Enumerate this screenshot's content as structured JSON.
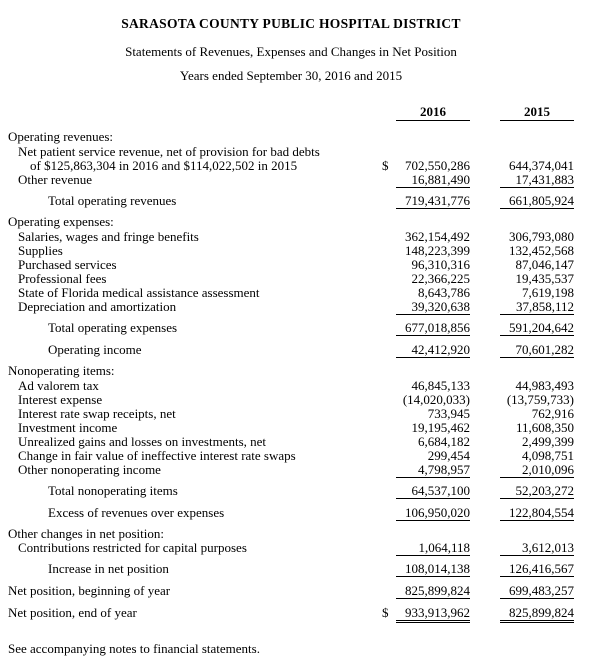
{
  "document": {
    "title": "SARASOTA COUNTY PUBLIC HOSPITAL DISTRICT",
    "subtitle": "Statements of Revenues, Expenses and Changes in Net Position",
    "period": "Years ended September 30, 2016 and 2015",
    "footnote": "See accompanying notes to financial statements."
  },
  "columns": {
    "col1": "2016",
    "col2": "2015"
  },
  "rows": [
    {
      "type": "section",
      "indent": 0,
      "label": "Operating revenues:"
    },
    {
      "type": "item",
      "indent": 1,
      "label": "Net patient service revenue, net of provision for bad debts",
      "mt": 1
    },
    {
      "type": "item",
      "indent": 2,
      "label": "of $125,863,304 in 2016 and $114,022,502 in 2015",
      "dollar": "$",
      "v1": "702,550,286",
      "v2": "644,374,041"
    },
    {
      "type": "item",
      "indent": 1,
      "label": "Other revenue",
      "v1": "16,881,490",
      "v2": "17,431,883",
      "u": 1
    },
    {
      "type": "total",
      "indent": 3,
      "label": "Total operating revenues",
      "v1": "719,431,776",
      "v2": "661,805,924",
      "u": 1,
      "mt": 6
    },
    {
      "type": "section",
      "indent": 0,
      "label": "Operating expenses:",
      "mt": 6
    },
    {
      "type": "item",
      "indent": 1,
      "label": "Salaries, wages and fringe benefits",
      "v1": "362,154,492",
      "v2": "306,793,080",
      "mt": 1
    },
    {
      "type": "item",
      "indent": 1,
      "label": "Supplies",
      "v1": "148,223,399",
      "v2": "132,452,568"
    },
    {
      "type": "item",
      "indent": 1,
      "label": "Purchased services",
      "v1": "96,310,316",
      "v2": "87,046,147"
    },
    {
      "type": "item",
      "indent": 1,
      "label": "Professional fees",
      "v1": "22,366,225",
      "v2": "19,435,537"
    },
    {
      "type": "item",
      "indent": 1,
      "label": "State of Florida medical assistance assessment",
      "v1": "8,643,786",
      "v2": "7,619,198"
    },
    {
      "type": "item",
      "indent": 1,
      "label": "Depreciation and amortization",
      "v1": "39,320,638",
      "v2": "37,858,112",
      "u": 1
    },
    {
      "type": "total",
      "indent": 3,
      "label": "Total operating expenses",
      "v1": "677,018,856",
      "v2": "591,204,642",
      "u": 1,
      "mt": 6
    },
    {
      "type": "total",
      "indent": 3,
      "label": "Operating income",
      "v1": "42,412,920",
      "v2": "70,601,282",
      "u": 1,
      "mt": 7
    },
    {
      "type": "section",
      "indent": 0,
      "label": "Nonoperating items:",
      "mt": 6
    },
    {
      "type": "item",
      "indent": 1,
      "label": "Ad valorem tax",
      "v1": "46,845,133",
      "v2": "44,983,493",
      "mt": 1
    },
    {
      "type": "item",
      "indent": 1,
      "label": "Interest expense",
      "v1": "(14,020,033)",
      "v2": "(13,759,733)"
    },
    {
      "type": "item",
      "indent": 1,
      "label": "Interest rate swap receipts, net",
      "v1": "733,945",
      "v2": "762,916"
    },
    {
      "type": "item",
      "indent": 1,
      "label": "Investment income",
      "v1": "19,195,462",
      "v2": "11,608,350"
    },
    {
      "type": "item",
      "indent": 1,
      "label": "Unrealized gains and losses on investments, net",
      "v1": "6,684,182",
      "v2": "2,499,399"
    },
    {
      "type": "item",
      "indent": 1,
      "label": "Change in fair value of ineffective interest rate swaps",
      "v1": "299,454",
      "v2": "4,098,751"
    },
    {
      "type": "item",
      "indent": 1,
      "label": "Other nonoperating income",
      "v1": "4,798,957",
      "v2": "2,010,096",
      "u": 1
    },
    {
      "type": "total",
      "indent": 3,
      "label": "Total nonoperating items",
      "v1": "64,537,100",
      "v2": "52,203,272",
      "u": 1,
      "mt": 6
    },
    {
      "type": "total",
      "indent": 3,
      "label": "Excess of revenues over expenses",
      "v1": "106,950,020",
      "v2": "122,804,554",
      "u": 1,
      "mt": 7
    },
    {
      "type": "section",
      "indent": 0,
      "label": "Other changes in net position:",
      "mt": 6
    },
    {
      "type": "item",
      "indent": 1,
      "label": "Contributions restricted for capital purposes",
      "v1": "1,064,118",
      "v2": "3,612,013",
      "u": 1
    },
    {
      "type": "total",
      "indent": 3,
      "label": "Increase in net position",
      "v1": "108,014,138",
      "v2": "126,416,567",
      "u": 1,
      "mt": 6
    },
    {
      "type": "plain",
      "indent": 0,
      "label": "Net position, beginning of year",
      "v1": "825,899,824",
      "v2": "699,483,257",
      "u": 1,
      "mt": 7
    },
    {
      "type": "plain",
      "indent": 0,
      "label": "Net position, end of year",
      "dollar": "$",
      "v1": "933,913,962",
      "v2": "825,899,824",
      "u": 2,
      "mt": 7
    }
  ]
}
